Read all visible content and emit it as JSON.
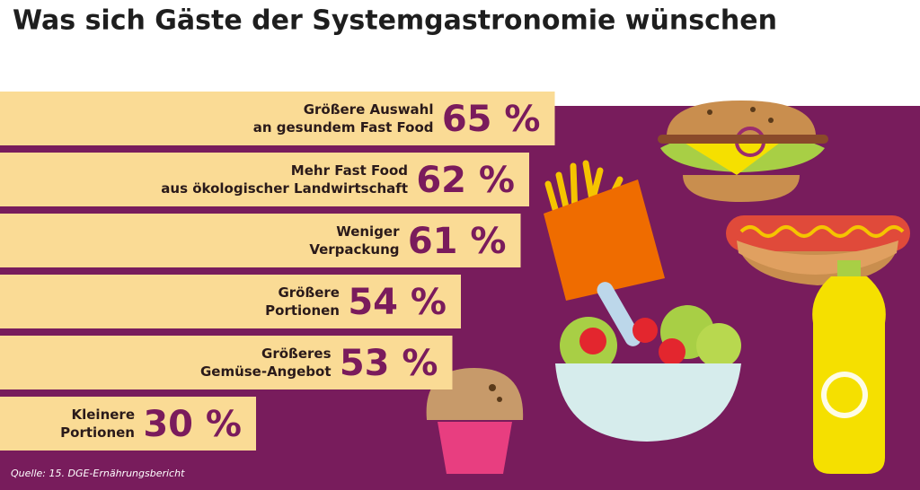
{
  "chart_data": {
    "type": "bar",
    "orientation": "horizontal",
    "title": "Was sich Gäste der Systemgastronomie wünschen",
    "categories": [
      [
        "Größere Auswahl",
        "an gesundem Fast Food"
      ],
      [
        "Mehr Fast Food",
        "aus ökologischer Landwirtschaft"
      ],
      [
        "Weniger",
        "Verpackung"
      ],
      [
        "Größere",
        "Portionen"
      ],
      [
        "Größeres",
        "Gemüse-Angebot"
      ],
      [
        "Kleinere",
        "Portionen"
      ]
    ],
    "values": [
      65,
      62,
      61,
      54,
      53,
      30
    ],
    "value_labels": [
      "65 %",
      "62 %",
      "61 %",
      "54 %",
      "53 %",
      "30 %"
    ],
    "color": "#fadb95",
    "source": "Quelle: 15. DGE-Ernährungsbericht"
  }
}
